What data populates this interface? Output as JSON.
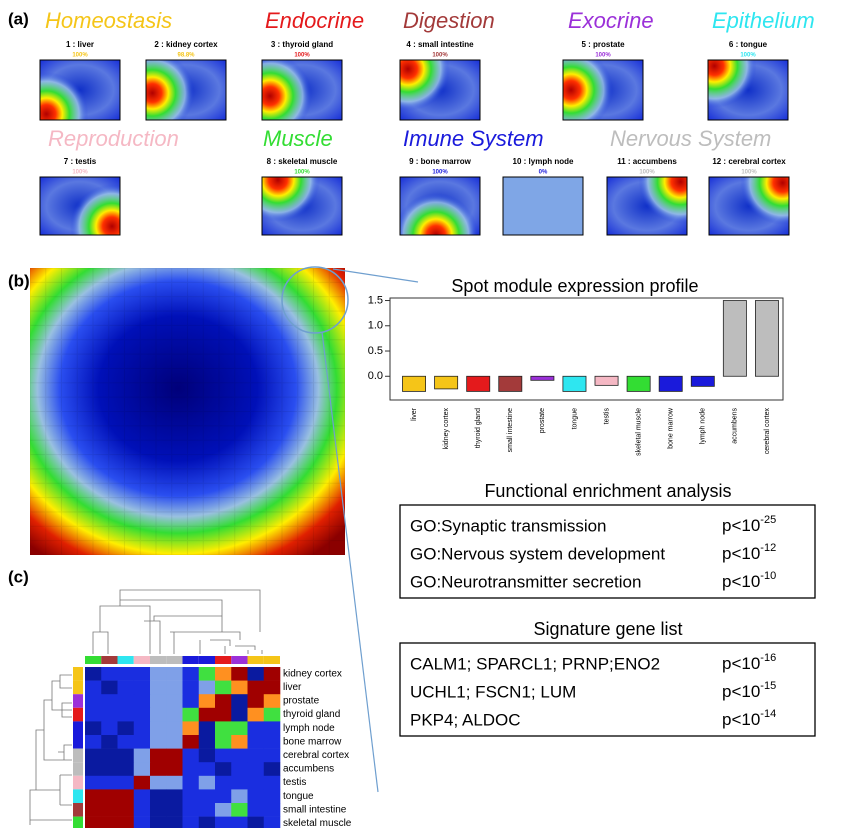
{
  "panel_a": {
    "label": "(a)",
    "groups": [
      {
        "name": "Homeostasis",
        "color": "#f5c518",
        "tiles": [
          {
            "label": "1 : liver",
            "pct": "100%"
          },
          {
            "label": "2 : kidney cortex",
            "pct": "98.8%"
          }
        ]
      },
      {
        "name": "Endocrine",
        "color": "#e41a1c",
        "tiles": [
          {
            "label": "3 : thyroid gland",
            "pct": "100%"
          }
        ]
      },
      {
        "name": "Digestion",
        "color": "#a33a3a",
        "tiles": [
          {
            "label": "4 : small intestine",
            "pct": "100%"
          }
        ]
      },
      {
        "name": "Exocrine",
        "color": "#9b30d9",
        "tiles": [
          {
            "label": "5 : prostate",
            "pct": "100%"
          }
        ]
      },
      {
        "name": "Epithelium",
        "color": "#2ee6f0",
        "tiles": [
          {
            "label": "6 : tongue",
            "pct": "100%"
          }
        ]
      },
      {
        "name": "Reproduction",
        "color": "#f5b8c4",
        "tiles": [
          {
            "label": "7 : testis",
            "pct": "100%"
          }
        ]
      },
      {
        "name": "Muscle",
        "color": "#33dd33",
        "tiles": [
          {
            "label": "8 : skeletal muscle",
            "pct": "100%"
          }
        ]
      },
      {
        "name": "Imune System",
        "color": "#1a1adb",
        "tiles": [
          {
            "label": "9 : bone marrow",
            "pct": "100%"
          },
          {
            "label": "10 : lymph node",
            "pct": "0%"
          }
        ]
      },
      {
        "name": "Nervous System",
        "color": "#bdbdbd",
        "tiles": [
          {
            "label": "11 : accumbens",
            "pct": "100%"
          },
          {
            "label": "12 : cerebral cortex",
            "pct": "100%"
          }
        ]
      }
    ]
  },
  "panel_b": {
    "label": "(b)"
  },
  "chart_data": {
    "type": "bar",
    "title": "Spot module expression profile",
    "categories": [
      "liver",
      "kidney cortex",
      "thyroid gland",
      "small intestine",
      "prostate",
      "tongue",
      "testis",
      "skeletal muscle",
      "bone marrow",
      "lymph node",
      "accumbens",
      "cerebral cortex"
    ],
    "values": [
      -0.3,
      -0.25,
      -0.3,
      -0.3,
      -0.08,
      -0.3,
      -0.18,
      -0.3,
      -0.3,
      -0.2,
      1.5,
      1.5
    ],
    "colors": [
      "#f5c518",
      "#f5c518",
      "#e41a1c",
      "#a33a3a",
      "#9b30d9",
      "#2ee6f0",
      "#f5b8c4",
      "#33dd33",
      "#1a1adb",
      "#1a1adb",
      "#bdbdbd",
      "#bdbdbd"
    ],
    "ylim": [
      -0.47,
      1.55
    ],
    "yticks": [
      {
        "value": 0,
        "label": "0.0"
      },
      0.5,
      {
        "value": 1,
        "label": "1.0"
      },
      1.5
    ]
  },
  "enrichment": {
    "title": "Functional enrichment analysis",
    "rows": [
      {
        "term": "GO:Synaptic transmission",
        "p": "p<10",
        "exp": "-25"
      },
      {
        "term": "GO:Nervous system development",
        "p": "p<10",
        "exp": "-12"
      },
      {
        "term": "GO:Neurotransmitter secretion",
        "p": "p<10",
        "exp": "-10"
      }
    ]
  },
  "signature": {
    "title": "Signature gene list",
    "rows": [
      {
        "term": "CALM1; SPARCL1; PRNP;ENO2",
        "p": "p<10",
        "exp": "-16"
      },
      {
        "term": "UCHL1; FSCN1; LUM",
        "p": "p<10",
        "exp": "-15"
      },
      {
        "term": "PKP4; ALDOC",
        "p": "p<10",
        "exp": "-14"
      }
    ]
  },
  "panel_c": {
    "label": "(c)",
    "rows": [
      "kidney cortex",
      "liver",
      "prostate",
      "thyroid gland",
      "lymph node",
      "bone marrow",
      "cerebral cortex",
      "accumbens",
      "testis",
      "tongue",
      "small intestine",
      "skeletal muscle"
    ]
  }
}
